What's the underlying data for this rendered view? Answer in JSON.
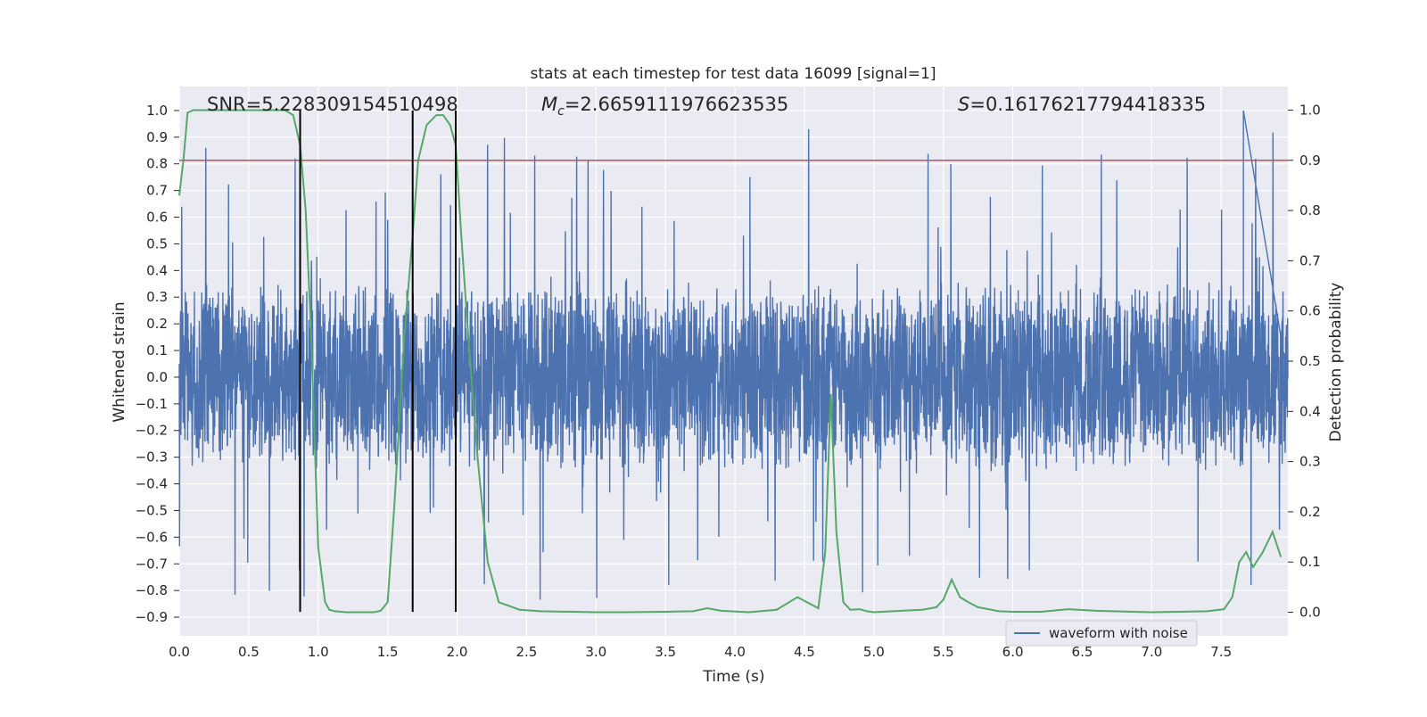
{
  "chart_data": {
    "type": "line",
    "title": "stats at each timestep for test data 16099 [signal=1]",
    "xlabel": "Time (s)",
    "ylabel": "Whitened strain",
    "ylabel_right": "Detection probability",
    "xlim": [
      0.0,
      7.98
    ],
    "ylim": [
      -0.97,
      1.09
    ],
    "ylim_right": [
      -0.047,
      1.047
    ],
    "x_ticks": [
      0.0,
      0.5,
      1.0,
      1.5,
      2.0,
      2.5,
      3.0,
      3.5,
      4.0,
      4.5,
      5.0,
      5.5,
      6.0,
      6.5,
      7.0,
      7.5
    ],
    "x_tick_labels": [
      "0.0",
      "0.5",
      "1.0",
      "1.5",
      "2.0",
      "2.5",
      "3.0",
      "3.5",
      "4.0",
      "4.5",
      "5.0",
      "5.5",
      "6.0",
      "6.5",
      "7.0",
      "7.5"
    ],
    "y_ticks": [
      1.0,
      0.9,
      0.8,
      0.7,
      0.6,
      0.5,
      0.4,
      0.3,
      0.2,
      0.1,
      0.0,
      -0.1,
      -0.2,
      -0.3,
      -0.4,
      -0.5,
      -0.6,
      -0.7,
      -0.8,
      -0.9
    ],
    "y_tick_labels": [
      "1.0",
      "0.9",
      "0.8",
      "0.7",
      "0.6",
      "0.5",
      "0.4",
      "0.3",
      "0.2",
      "0.1",
      "0.0",
      "−0.1",
      "−0.2",
      "−0.3",
      "−0.4",
      "−0.5",
      "−0.6",
      "−0.7",
      "−0.8",
      "−0.9"
    ],
    "y2_ticks": [
      1.0,
      0.9,
      0.8,
      0.7,
      0.6,
      0.5,
      0.4,
      0.3,
      0.2,
      0.1,
      0.0
    ],
    "y2_tick_labels": [
      "1.0",
      "0.9",
      "0.8",
      "0.7",
      "0.6",
      "0.5",
      "0.4",
      "0.3",
      "0.2",
      "0.1",
      "0.0"
    ],
    "annotations": {
      "snr": "SNR=5.228309154510498",
      "mc_symbol": "M",
      "mc_sub": "c",
      "mc_value": "=2.6659111976623535",
      "s_symbol": "S",
      "s_value": "=0.16176217794418335"
    },
    "grid": true,
    "legend": {
      "placement": "lower-right",
      "entries": [
        "waveform with noise"
      ]
    },
    "colors": {
      "background": "#eaeaf2",
      "grid": "#ffffff",
      "strain": "#4c72b0",
      "probability": "#55a868",
      "threshold": "#c44e52",
      "markers": "#000000"
    },
    "threshold_right": 0.9,
    "vertical_markers": [
      0.87,
      1.68,
      1.99
    ],
    "marker_y_range": [
      -0.88,
      1.0
    ],
    "strain_series": {
      "name": "waveform with noise",
      "description_note": "",
      "sample_count": 4096,
      "envelope_pos": 0.36,
      "envelope_neg": -0.38,
      "peak_max": 1.0,
      "peak_min": -0.84
    },
    "probability_series": {
      "x": [
        0.0,
        0.03,
        0.06,
        0.1,
        0.2,
        0.3,
        0.4,
        0.5,
        0.6,
        0.7,
        0.76,
        0.82,
        0.87,
        0.91,
        0.95,
        1.0,
        1.05,
        1.08,
        1.12,
        1.2,
        1.3,
        1.4,
        1.45,
        1.5,
        1.55,
        1.62,
        1.68,
        1.72,
        1.78,
        1.85,
        1.9,
        1.95,
        1.99,
        2.03,
        2.08,
        2.15,
        2.22,
        2.3,
        2.45,
        2.6,
        3.0,
        3.2,
        3.5,
        3.7,
        3.8,
        3.9,
        4.1,
        4.3,
        4.45,
        4.6,
        4.65,
        4.69,
        4.73,
        4.78,
        4.83,
        4.9,
        4.95,
        5.0,
        5.2,
        5.35,
        5.45,
        5.5,
        5.56,
        5.62,
        5.68,
        5.75,
        5.9,
        6.0,
        6.2,
        6.4,
        6.6,
        7.0,
        7.2,
        7.4,
        7.52,
        7.58,
        7.63,
        7.68,
        7.73,
        7.8,
        7.87,
        7.93
      ],
      "y": [
        0.83,
        0.9,
        0.995,
        1.0,
        1.0,
        1.0,
        1.0,
        1.0,
        1.0,
        1.0,
        1.0,
        0.99,
        0.93,
        0.8,
        0.55,
        0.13,
        0.02,
        0.005,
        0.002,
        0.0,
        0.0,
        0.0,
        0.003,
        0.02,
        0.22,
        0.55,
        0.75,
        0.9,
        0.97,
        0.99,
        0.99,
        0.97,
        0.93,
        0.75,
        0.55,
        0.3,
        0.1,
        0.02,
        0.005,
        0.002,
        0.0,
        0.0,
        0.001,
        0.002,
        0.008,
        0.003,
        0.0,
        0.005,
        0.03,
        0.008,
        0.12,
        0.435,
        0.16,
        0.02,
        0.005,
        0.006,
        0.002,
        0.0,
        0.003,
        0.005,
        0.01,
        0.025,
        0.065,
        0.03,
        0.02,
        0.01,
        0.002,
        0.001,
        0.001,
        0.006,
        0.003,
        0.0,
        0.001,
        0.002,
        0.006,
        0.03,
        0.1,
        0.12,
        0.09,
        0.12,
        0.16,
        0.11
      ]
    }
  }
}
